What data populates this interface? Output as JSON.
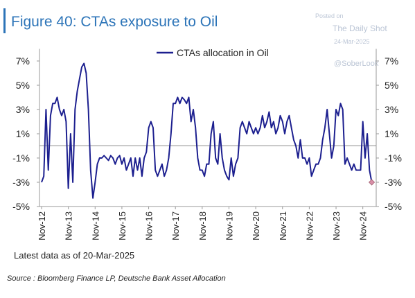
{
  "chart_data": {
    "type": "line",
    "title": "Figure 40: CTAs exposure to Oil",
    "watermark": [
      "Posted on",
      "The Daily Shot",
      "24-Mar-2025",
      "@SoberLook"
    ],
    "note": "Latest data as of 20-Mar-2025",
    "source": "Source : Bloomberg Finance LP, Deutsche Bank Asset Allocation",
    "x": [
      "Nov-12",
      "Dec-12",
      "Jan-13",
      "Feb-13",
      "Mar-13",
      "Apr-13",
      "May-13",
      "Jun-13",
      "Jul-13",
      "Aug-13",
      "Sep-13",
      "Oct-13",
      "Nov-13",
      "Dec-13",
      "Jan-14",
      "Feb-14",
      "Mar-14",
      "Apr-14",
      "May-14",
      "Jun-14",
      "Jul-14",
      "Aug-14",
      "Sep-14",
      "Oct-14",
      "Nov-14",
      "Dec-14",
      "Jan-15",
      "Feb-15",
      "Mar-15",
      "Apr-15",
      "May-15",
      "Jun-15",
      "Jul-15",
      "Aug-15",
      "Sep-15",
      "Oct-15",
      "Nov-15",
      "Dec-15",
      "Jan-16",
      "Feb-16",
      "Mar-16",
      "Apr-16",
      "May-16",
      "Jun-16",
      "Jul-16",
      "Aug-16",
      "Sep-16",
      "Oct-16",
      "Nov-16",
      "Dec-16",
      "Jan-17",
      "Feb-17",
      "Mar-17",
      "Apr-17",
      "May-17",
      "Jun-17",
      "Jul-17",
      "Aug-17",
      "Sep-17",
      "Oct-17",
      "Nov-17",
      "Dec-17",
      "Jan-18",
      "Feb-18",
      "Mar-18",
      "Apr-18",
      "May-18",
      "Jun-18",
      "Jul-18",
      "Aug-18",
      "Sep-18",
      "Oct-18",
      "Nov-18",
      "Dec-18",
      "Jan-19",
      "Feb-19",
      "Mar-19",
      "Apr-19",
      "May-19",
      "Jun-19",
      "Jul-19",
      "Aug-19",
      "Sep-19",
      "Oct-19",
      "Nov-19",
      "Dec-19",
      "Jan-20",
      "Feb-20",
      "Mar-20",
      "Apr-20",
      "May-20",
      "Jun-20",
      "Jul-20",
      "Aug-20",
      "Sep-20",
      "Oct-20",
      "Nov-20",
      "Dec-20",
      "Jan-21",
      "Feb-21",
      "Mar-21",
      "Apr-21",
      "May-21",
      "Jun-21",
      "Jul-21",
      "Aug-21",
      "Sep-21",
      "Oct-21",
      "Nov-21",
      "Dec-21",
      "Jan-22",
      "Feb-22",
      "Mar-22",
      "Apr-22",
      "May-22",
      "Jun-22",
      "Jul-22",
      "Aug-22",
      "Sep-22",
      "Oct-22",
      "Nov-22",
      "Dec-22",
      "Jan-23",
      "Feb-23",
      "Mar-23",
      "Apr-23",
      "May-23",
      "Jun-23",
      "Jul-23",
      "Aug-23",
      "Sep-23",
      "Oct-23",
      "Nov-23",
      "Dec-23",
      "Jan-24",
      "Feb-24",
      "Mar-24",
      "Apr-24",
      "May-24",
      "Jun-24",
      "Jul-24",
      "Aug-24",
      "Sep-24",
      "Oct-24",
      "Nov-24",
      "Dec-24",
      "Jan-25",
      "Feb-25",
      "Mar-25"
    ],
    "series": [
      {
        "name": "CTAs allocation in Oil",
        "color": "#1c1f8f",
        "values": [
          -3,
          -2.5,
          3,
          -2,
          2.5,
          3.5,
          3.5,
          4,
          3,
          2.5,
          3,
          2,
          -3.5,
          1,
          -3,
          3,
          4.5,
          5.5,
          6.5,
          6.8,
          6,
          3,
          -2,
          -4.3,
          -3,
          -1.5,
          -1,
          -1,
          -0.8,
          -1,
          -1.2,
          -0.8,
          -1,
          -1.5,
          -1,
          -0.8,
          -1.5,
          -1,
          -2,
          -1.5,
          -1,
          -2.5,
          -1,
          -2,
          -1,
          -2.5,
          -1,
          -0.5,
          1.5,
          2,
          1.5,
          -2,
          -2.5,
          -2,
          -1.5,
          -2.5,
          -2,
          -1,
          1,
          3.5,
          3.5,
          4,
          3.5,
          4,
          3.8,
          3.5,
          4,
          2,
          3,
          1.5,
          -1,
          -2,
          -2,
          -2.5,
          -1.5,
          -1.5,
          1,
          2,
          -1,
          -1.5,
          1,
          -1,
          -2,
          -2.5,
          -2.8,
          -1,
          -2.5,
          -1.5,
          -1,
          1.5,
          2,
          1.5,
          1,
          2,
          1.5,
          1,
          1.5,
          1,
          1.5,
          2.5,
          1.5,
          2,
          2.8,
          1.5,
          2,
          1,
          1.5,
          2.5,
          2,
          1,
          2,
          2.5,
          1.5,
          0.5,
          0,
          -1,
          0.5,
          -1,
          -1,
          -1.5,
          -1,
          -2.5,
          -2,
          -1.5,
          -1.5,
          -1,
          0.5,
          1.5,
          3,
          1,
          -1,
          0,
          3,
          2.5,
          3.5,
          3,
          -1.5,
          -1,
          -1.5,
          -2,
          -1.5,
          -2,
          -2,
          -2,
          2,
          -1,
          1,
          -2,
          -3
        ]
      }
    ],
    "xticks": [
      "Nov-12",
      "Nov-13",
      "Nov-14",
      "Nov-15",
      "Nov-16",
      "Nov-17",
      "Nov-18",
      "Nov-19",
      "Nov-20",
      "Nov-21",
      "Nov-22",
      "Nov-23",
      "Nov-24"
    ],
    "ylim": [
      -5,
      8
    ],
    "yticks": [
      {
        "value": -5,
        "label": "-5%"
      },
      {
        "value": -3,
        "label": "-3%"
      },
      {
        "value": -1,
        "label": "-1%"
      },
      {
        "value": 1,
        "label": "1%"
      },
      {
        "value": 3,
        "label": "3%"
      },
      {
        "value": 5,
        "label": "5%"
      },
      {
        "value": 7,
        "label": "7%"
      }
    ],
    "last_marker_color": "#d98fa8"
  }
}
